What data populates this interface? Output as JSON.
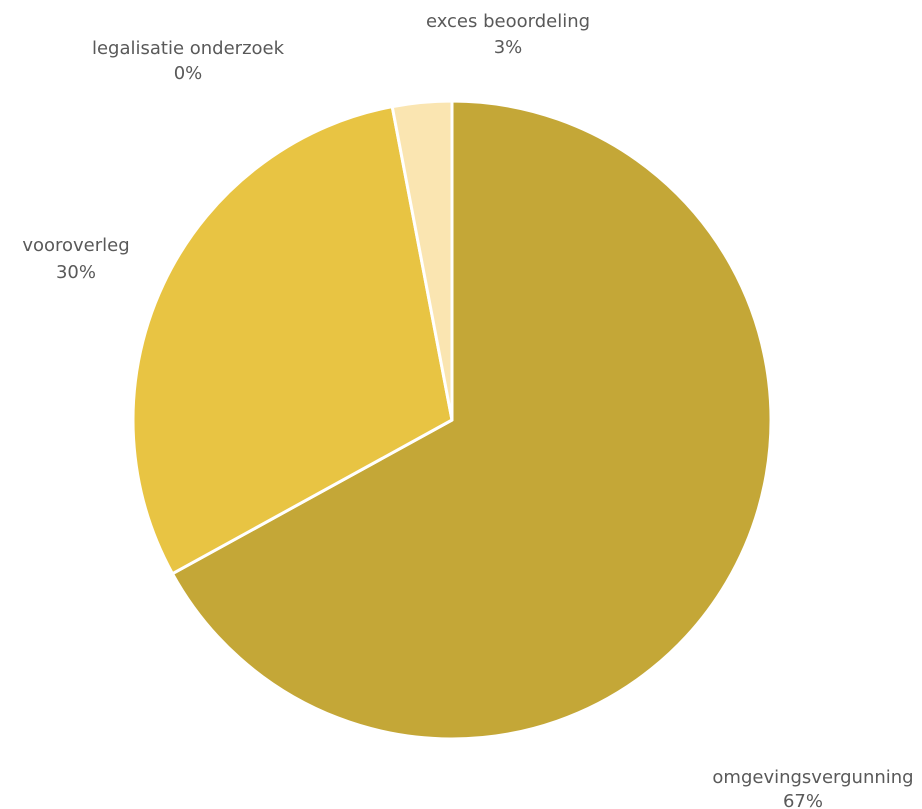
{
  "chart_data": {
    "type": "pie",
    "title": "",
    "slices": [
      {
        "label": "omgevingsvergunning",
        "value": 67,
        "value_label": "67%",
        "color": "#c4a737"
      },
      {
        "label": "vooroverleg",
        "value": 30,
        "value_label": "30%",
        "color": "#e8c443"
      },
      {
        "label": "legalisatie onderzoek",
        "value": 0,
        "value_label": "0%",
        "color": "#d9b93c"
      },
      {
        "label": "exces beoordeling",
        "value": 3,
        "value_label": "3%",
        "color": "#fae5b1"
      }
    ],
    "start_angle_deg": 0,
    "direction": "clockwise",
    "slice_border_color": "#ffffff",
    "legend": "none"
  }
}
